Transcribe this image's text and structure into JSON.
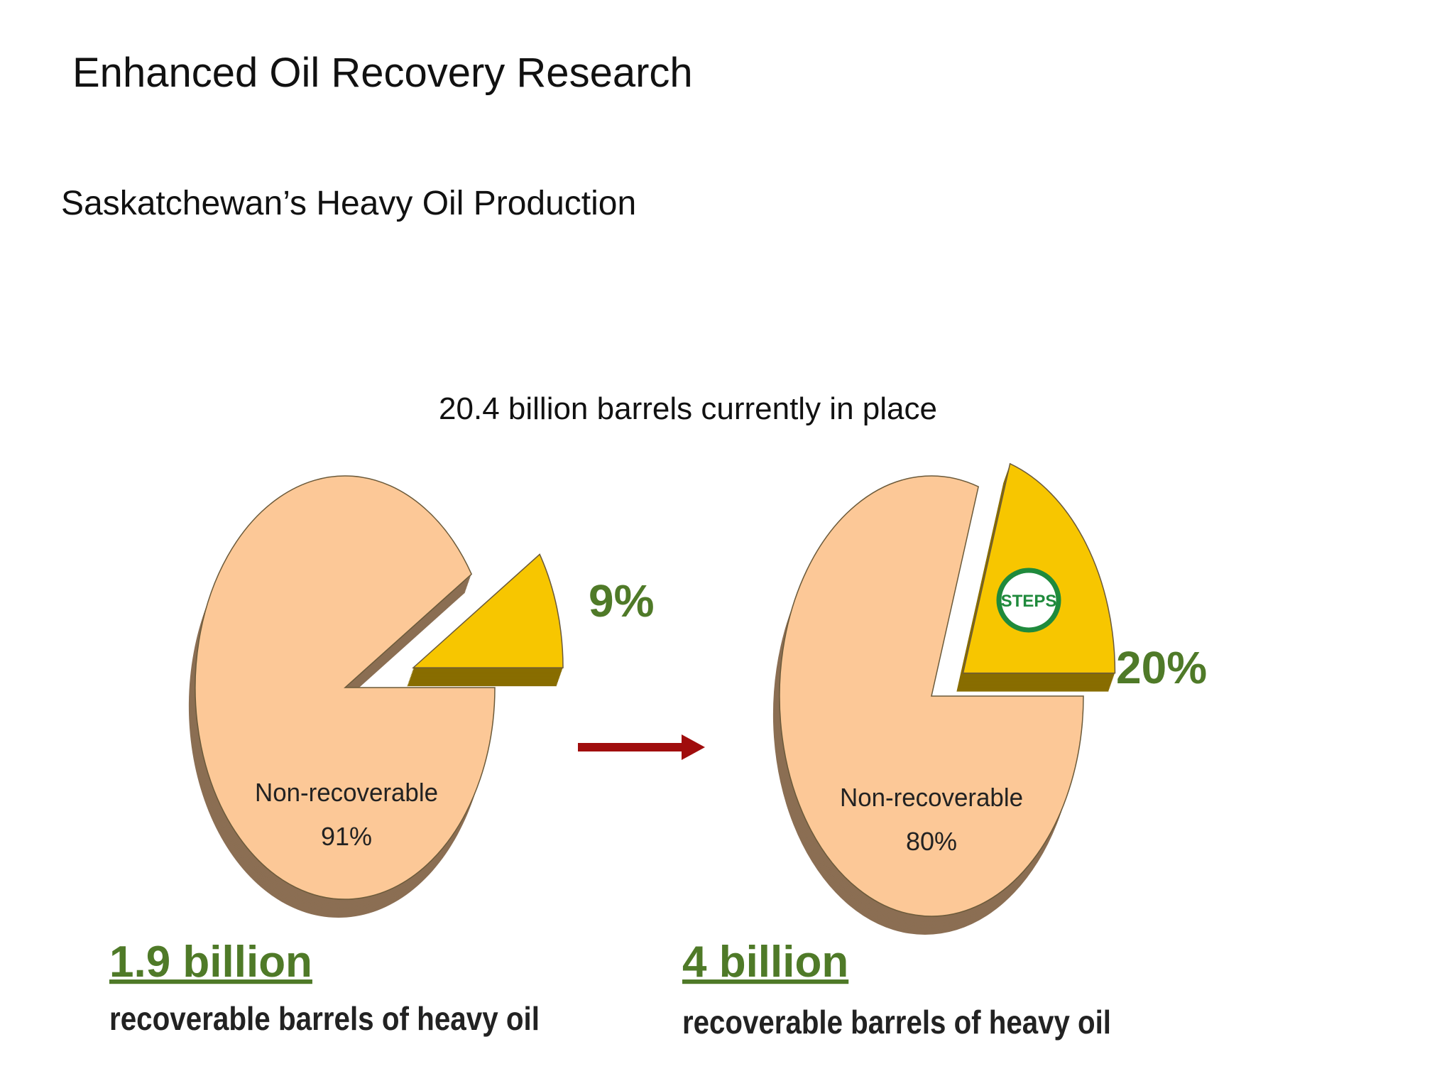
{
  "title": "Enhanced Oil Recovery Research",
  "subtitle": "Saskatchewan’s Heavy Oil Production",
  "caption": "20.4 billion barrels currently in place",
  "chart_data": [
    {
      "type": "pie",
      "categories": [
        "Non-recoverable",
        null
      ],
      "values": [
        91,
        9
      ],
      "value_labels": [
        "91%",
        "9%"
      ],
      "colors": [
        "#fcc897",
        "#f7c600"
      ],
      "total": "1.9 billion",
      "note": "recoverable barrels of heavy oil"
    },
    {
      "type": "pie",
      "categories": [
        "Non-recoverable",
        null
      ],
      "values": [
        80,
        20
      ],
      "value_labels": [
        "80%",
        "20%"
      ],
      "colors": [
        "#fcc897",
        "#f7c600"
      ],
      "total": "4 billion",
      "note": "recoverable barrels of heavy oil",
      "badge": "STEPS"
    }
  ]
}
